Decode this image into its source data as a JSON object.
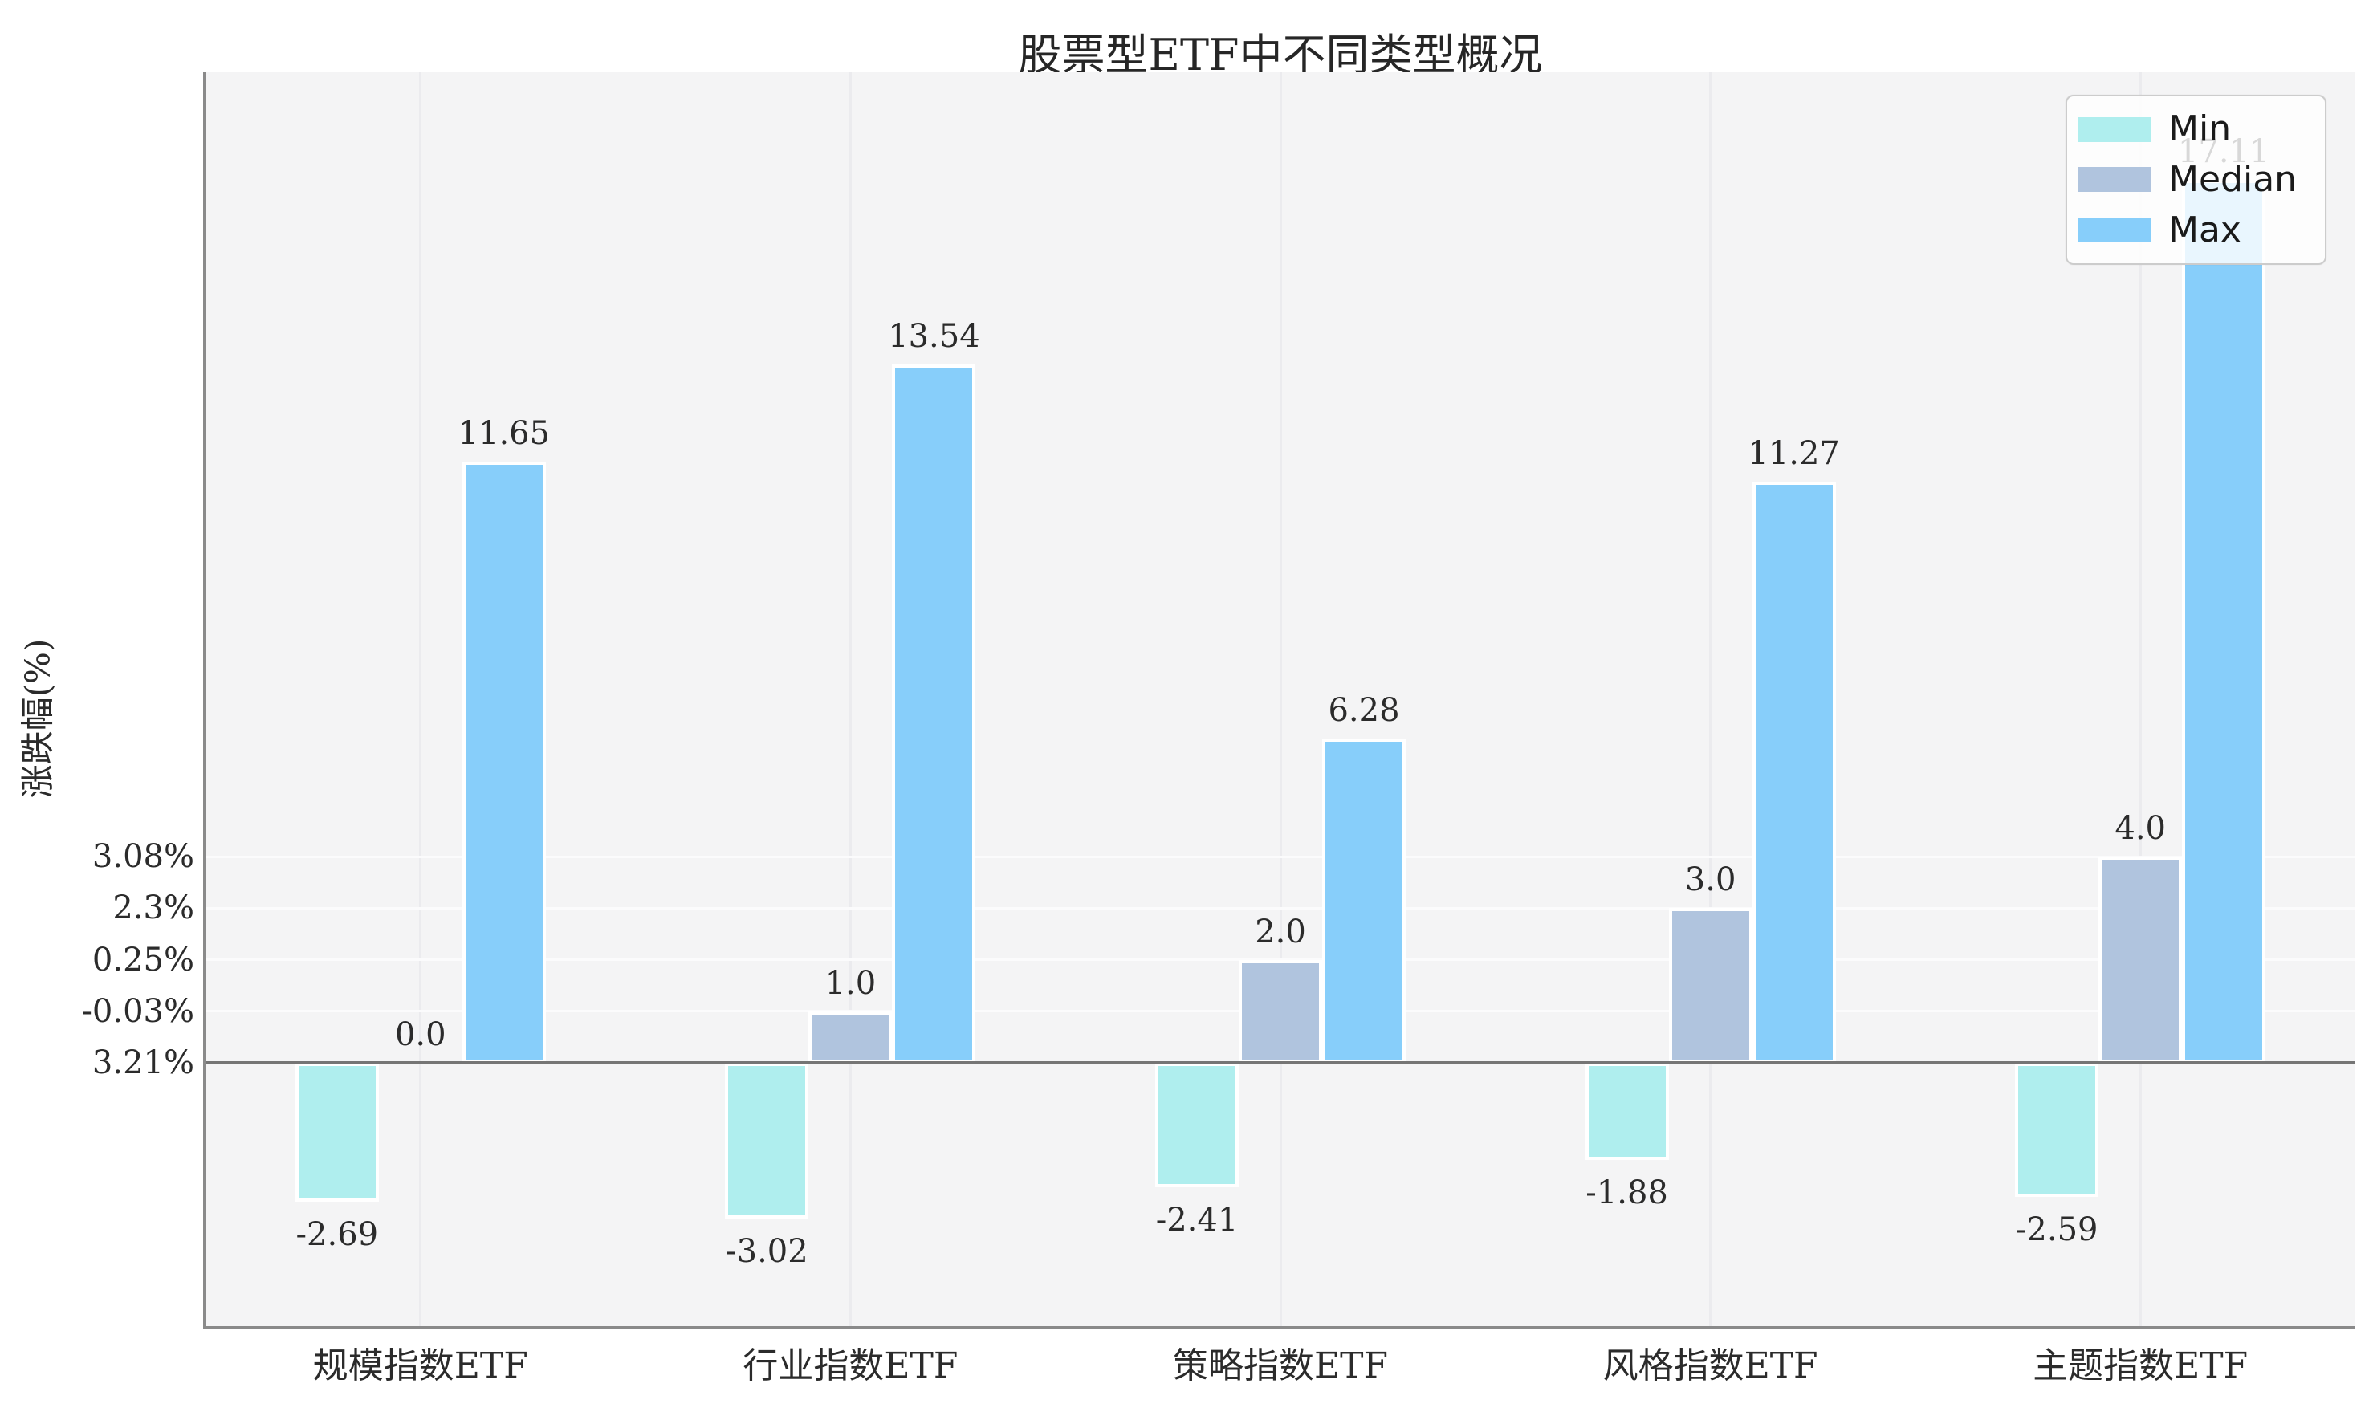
{
  "chart_data": {
    "type": "bar",
    "title": "股票型ETF中不同类型概况",
    "ylabel": "涨跌幅(%)",
    "xlabel": "",
    "categories": [
      "规模指数ETF",
      "行业指数ETF",
      "策略指数ETF",
      "风格指数ETF",
      "主题指数ETF"
    ],
    "series": [
      {
        "name": "Min",
        "color": "#AFEEEE",
        "values": [
          -2.69,
          -3.02,
          -2.41,
          -1.88,
          -2.59
        ],
        "labels": [
          "-2.69",
          "-3.02",
          "-2.41",
          "-1.88",
          "-2.59"
        ]
      },
      {
        "name": "Median",
        "color": "#B0C4DE",
        "values": [
          0.0,
          1.0,
          2.0,
          3.0,
          4.0
        ],
        "labels": [
          "0.0",
          "1.0",
          "2.0",
          "3.0",
          "4.0"
        ]
      },
      {
        "name": "Max",
        "color": "#87CEFA",
        "values": [
          11.65,
          13.54,
          6.28,
          11.27,
          17.11
        ],
        "labels": [
          "11.65",
          "13.54",
          "6.28",
          "11.27",
          "17.11"
        ]
      }
    ],
    "y_ticks": [
      {
        "value": 4.0,
        "label": "3.08%"
      },
      {
        "value": 3.0,
        "label": "2.3%"
      },
      {
        "value": 2.0,
        "label": "0.25%"
      },
      {
        "value": 1.0,
        "label": "-0.03%"
      },
      {
        "value": 0.0,
        "label": "3.21%"
      }
    ],
    "ylim": [
      -5.1,
      19.2
    ],
    "grid": true,
    "legend_position": "upper right",
    "plot_background": "#f4f4f5",
    "zero_line_color": "#757575",
    "spine_color": "#8a8a8a",
    "bar_edge_color": "#ffffff"
  }
}
